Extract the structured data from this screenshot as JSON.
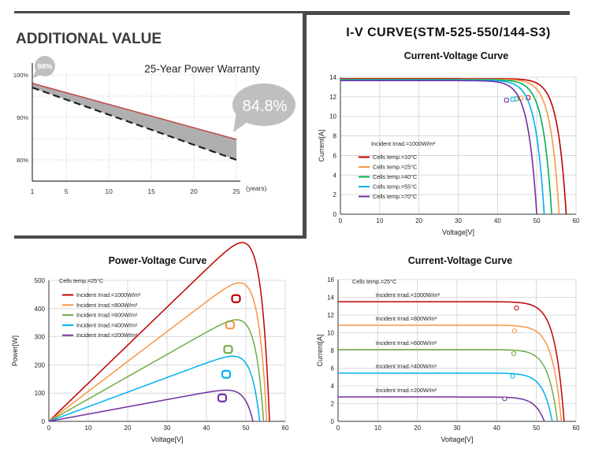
{
  "warranty": {
    "heading": "ADDITIONAL VALUE",
    "subtitle": "25-Year Power Warranty",
    "badge_start": "98%",
    "badge_end": "84.8%",
    "x_unit": "(years)",
    "x_ticks": [
      "1",
      "5",
      "10",
      "15",
      "20",
      "25"
    ],
    "y_ticks": [
      "100%",
      "90%",
      "80%"
    ],
    "colors": {
      "warranty_line": "#c0504d",
      "standard_line": "#222222",
      "area": "#a6a6a6",
      "badge": "#bfbfbf",
      "bar": "#4a4a4a"
    }
  },
  "iv_title": "I-V CURVE(STM-525-550/144-S3)",
  "chart_data": [
    {
      "id": "warranty",
      "type": "line",
      "xlim": [
        1,
        25
      ],
      "ylim": [
        75,
        100
      ],
      "grid": true,
      "series": [
        {
          "role": "warranty",
          "x": [
            1,
            25
          ],
          "values": [
            98,
            84.8
          ],
          "color": "#c0504d"
        },
        {
          "role": "standard",
          "x": [
            1,
            25
          ],
          "values": [
            97,
            80
          ],
          "color": "#222222"
        }
      ]
    },
    {
      "id": "iv_temp",
      "type": "line",
      "title": "Current-Voltage Curve",
      "xlabel": "Voltage[V]",
      "ylabel": "Current[A]",
      "xlim": [
        0,
        60
      ],
      "ylim": [
        0,
        14
      ],
      "xticks": [
        "0",
        "10",
        "20",
        "30",
        "40",
        "50",
        "60"
      ],
      "yticks": [
        "0",
        "2",
        "4",
        "6",
        "8",
        "10",
        "12",
        "14"
      ],
      "grid": true,
      "legend_header": "Incident Irrad.=1000W/m²",
      "legend_position": "left-center",
      "series": [
        {
          "name": "Cells temp.=10°C",
          "color": "#c00000",
          "isc": 13.85,
          "voc": 57.5,
          "mpp": [
            47.8,
            11.9
          ]
        },
        {
          "name": "Cells temp.=25°C",
          "color": "#f79646",
          "isc": 13.8,
          "voc": 55.7,
          "mpp": [
            46.0,
            11.85
          ]
        },
        {
          "name": "Cells temp.=40°C",
          "color": "#00b050",
          "isc": 13.75,
          "voc": 53.8,
          "mpp": [
            44.8,
            11.8
          ]
        },
        {
          "name": "Cells temp.=55°C",
          "color": "#00b0f0",
          "isc": 13.7,
          "voc": 51.9,
          "mpp": [
            43.9,
            11.75
          ]
        },
        {
          "name": "Cells temp.=70°C",
          "color": "#7030a0",
          "isc": 13.65,
          "voc": 50.0,
          "mpp": [
            42.3,
            11.65
          ]
        }
      ]
    },
    {
      "id": "pv_irrad",
      "type": "line",
      "title": "Power-Voltage Curve",
      "xlabel": "Voltage[V]",
      "ylabel": "Power[W]",
      "xlim": [
        0,
        60
      ],
      "ylim": [
        0,
        500
      ],
      "xticks": [
        "0",
        "10",
        "20",
        "30",
        "40",
        "50",
        "60"
      ],
      "yticks": [
        "0",
        "100",
        "200",
        "300",
        "400",
        "500"
      ],
      "grid": true,
      "legend_header": "Cells temp.=25°C",
      "legend_position": "top-left",
      "series": [
        {
          "name": "Incident Irrad.=1000W/m²",
          "color": "#c00000",
          "peak": [
            47.5,
            435
          ],
          "voc": 56.0
        },
        {
          "name": "Incident Irrad.=800W/m²",
          "color": "#f79646",
          "peak": [
            46.0,
            342
          ],
          "voc": 55.3
        },
        {
          "name": "Incident Irrad.=600W/m²",
          "color": "#70ad47",
          "peak": [
            45.5,
            255
          ],
          "voc": 54.5
        },
        {
          "name": "Incident Irrad.=400W/m²",
          "color": "#00b0f0",
          "peak": [
            45.0,
            167
          ],
          "voc": 53.5
        },
        {
          "name": "Incident Irrad.=200W/m²",
          "color": "#7030a0",
          "peak": [
            44.0,
            83
          ],
          "voc": 51.8
        }
      ]
    },
    {
      "id": "iv_irrad",
      "type": "line",
      "title": "Current-Voltage Curve",
      "xlabel": "Voltage[V]",
      "ylabel": "Current[A]",
      "xlim": [
        0,
        60
      ],
      "ylim": [
        0,
        16
      ],
      "xticks": [
        "0",
        "10",
        "20",
        "30",
        "40",
        "50",
        "60"
      ],
      "yticks": [
        "0",
        "2",
        "4",
        "6",
        "8",
        "10",
        "12",
        "14",
        "16"
      ],
      "grid": true,
      "legend_header": "Cells temp.=25°C",
      "legend_position": "inline",
      "series": [
        {
          "name": "Incident Irrad.=1000W/m²",
          "color": "#c00000",
          "isc": 13.5,
          "voc": 57.0,
          "mpp": [
            45.0,
            12.8
          ]
        },
        {
          "name": "Incident Irrad.=800W/m²",
          "color": "#f79646",
          "isc": 10.85,
          "voc": 56.3,
          "mpp": [
            44.5,
            10.2
          ]
        },
        {
          "name": "Incident Irrad.=600W/m²",
          "color": "#70ad47",
          "isc": 8.1,
          "voc": 55.3,
          "mpp": [
            44.3,
            7.65
          ]
        },
        {
          "name": "Incident Irrad.=400W/m²",
          "color": "#00b0f0",
          "isc": 5.45,
          "voc": 54.0,
          "mpp": [
            44.0,
            5.1
          ]
        },
        {
          "name": "Incident Irrad.=200W/m²",
          "color": "#7030a0",
          "isc": 2.75,
          "voc": 52.0,
          "mpp": [
            42.0,
            2.55
          ]
        }
      ]
    }
  ]
}
